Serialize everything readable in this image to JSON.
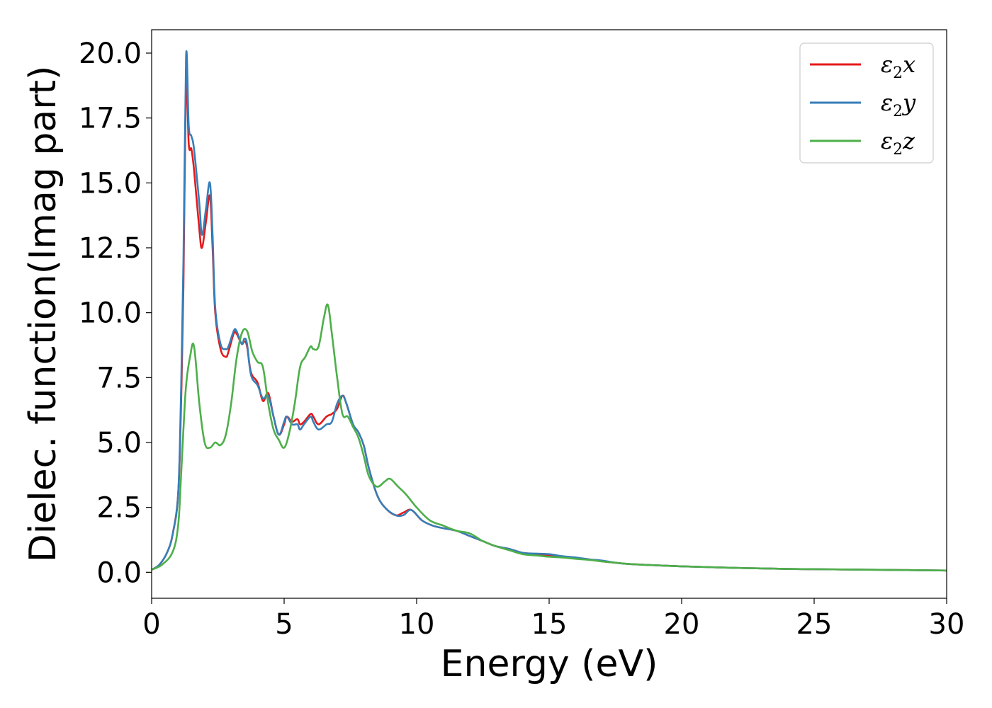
{
  "chart_data": {
    "type": "line",
    "xlabel": "Energy (eV)",
    "ylabel": "Dielec. function(Imag part)",
    "xlim": [
      0,
      30
    ],
    "ylim": [
      -1.0,
      20.9
    ],
    "xticks": [
      0,
      5,
      10,
      15,
      20,
      25,
      30
    ],
    "xtick_labels": [
      "0",
      "5",
      "10",
      "15",
      "20",
      "25",
      "30"
    ],
    "yticks": [
      0,
      2.5,
      5,
      7.5,
      10,
      12.5,
      15,
      17.5,
      20
    ],
    "ytick_labels": [
      "0.0",
      "2.5",
      "5.0",
      "7.5",
      "10.0",
      "12.5",
      "15.0",
      "17.5",
      "20.0"
    ],
    "grid": false,
    "legend": {
      "position": "top-right"
    },
    "series": [
      {
        "name": "ε2x",
        "legend_base": "ε",
        "legend_sub": "2",
        "legend_var": "x",
        "color": "#e41a1c",
        "x": [
          0,
          0.3,
          0.6,
          0.8,
          1.0,
          1.1,
          1.2,
          1.3,
          1.4,
          1.5,
          1.6,
          1.8,
          1.9,
          2.05,
          2.2,
          2.3,
          2.4,
          2.6,
          2.8,
          2.9,
          3.1,
          3.2,
          3.4,
          3.5,
          3.6,
          3.75,
          4.0,
          4.2,
          4.4,
          4.6,
          4.8,
          5.0,
          5.1,
          5.3,
          5.5,
          5.6,
          5.75,
          6.0,
          6.1,
          6.3,
          6.6,
          6.8,
          7.0,
          7.2,
          7.35,
          7.6,
          7.8,
          8.0,
          8.2,
          8.5,
          8.8,
          9.2,
          9.5,
          9.8,
          10.2,
          10.6,
          11.0,
          11.5,
          12.0,
          12.5,
          13.0,
          13.5,
          14.0,
          14.5,
          15.0,
          15.5,
          16.0,
          16.5,
          17.0,
          17.5,
          18.0,
          19.0,
          20.0,
          21.0,
          22.0,
          23.0,
          24.0,
          25.0,
          26.0,
          27.0,
          28.0,
          29.0,
          30.0
        ],
        "y": [
          0.1,
          0.3,
          0.8,
          1.5,
          3.0,
          6.0,
          11.0,
          19.1,
          16.5,
          16.3,
          15.5,
          13.2,
          12.5,
          13.5,
          14.5,
          12.5,
          10.0,
          8.6,
          8.3,
          8.5,
          9.2,
          9.2,
          8.8,
          8.9,
          8.7,
          7.7,
          7.3,
          6.6,
          6.9,
          6.0,
          5.3,
          5.7,
          6.0,
          5.8,
          5.9,
          5.7,
          5.8,
          6.1,
          6.0,
          5.7,
          6.0,
          6.1,
          6.3,
          6.8,
          6.5,
          5.7,
          5.4,
          4.9,
          4.0,
          3.0,
          2.5,
          2.2,
          2.3,
          2.4,
          2.0,
          1.8,
          1.7,
          1.6,
          1.4,
          1.2,
          1.0,
          0.9,
          0.75,
          0.7,
          0.65,
          0.6,
          0.55,
          0.5,
          0.42,
          0.37,
          0.32,
          0.27,
          0.23,
          0.2,
          0.17,
          0.15,
          0.13,
          0.12,
          0.11,
          0.1,
          0.09,
          0.08,
          0.07
        ]
      },
      {
        "name": "ε2y",
        "legend_base": "ε",
        "legend_sub": "2",
        "legend_var": "y",
        "color": "#377eb8",
        "x": [
          0,
          0.3,
          0.6,
          0.8,
          1.0,
          1.1,
          1.2,
          1.3,
          1.4,
          1.5,
          1.6,
          1.8,
          1.9,
          2.05,
          2.2,
          2.3,
          2.4,
          2.6,
          2.8,
          2.9,
          3.1,
          3.2,
          3.4,
          3.5,
          3.6,
          3.75,
          4.0,
          4.2,
          4.4,
          4.6,
          4.8,
          5.0,
          5.1,
          5.3,
          5.5,
          5.6,
          5.75,
          6.0,
          6.1,
          6.3,
          6.6,
          6.8,
          7.0,
          7.2,
          7.35,
          7.6,
          7.8,
          8.0,
          8.2,
          8.5,
          8.8,
          9.2,
          9.5,
          9.8,
          10.2,
          10.6,
          11.0,
          11.5,
          12.0,
          12.5,
          13.0,
          13.5,
          14.0,
          14.5,
          15.0,
          15.5,
          16.0,
          16.5,
          17.0,
          17.5,
          18.0,
          19.0,
          20.0,
          21.0,
          22.0,
          23.0,
          24.0,
          25.0,
          26.0,
          27.0,
          28.0,
          29.0,
          30.0
        ],
        "y": [
          0.1,
          0.3,
          0.8,
          1.5,
          3.0,
          6.5,
          12.0,
          19.9,
          17.2,
          16.8,
          16.3,
          14.2,
          13.0,
          14.0,
          15.0,
          13.0,
          10.2,
          8.8,
          8.6,
          8.7,
          9.3,
          9.3,
          8.8,
          9.0,
          8.8,
          7.6,
          7.2,
          6.7,
          6.8,
          6.0,
          5.3,
          5.8,
          6.0,
          5.7,
          5.7,
          5.5,
          5.7,
          6.0,
          5.8,
          5.5,
          5.7,
          5.8,
          6.5,
          6.8,
          6.5,
          5.7,
          5.4,
          4.9,
          4.0,
          3.0,
          2.5,
          2.2,
          2.2,
          2.4,
          2.0,
          1.8,
          1.7,
          1.6,
          1.4,
          1.2,
          1.0,
          0.9,
          0.75,
          0.72,
          0.7,
          0.62,
          0.57,
          0.5,
          0.45,
          0.37,
          0.32,
          0.27,
          0.23,
          0.2,
          0.17,
          0.15,
          0.13,
          0.12,
          0.11,
          0.1,
          0.09,
          0.08,
          0.07
        ]
      },
      {
        "name": "ε2z",
        "legend_base": "ε",
        "legend_sub": "2",
        "legend_var": "z",
        "color": "#4daf4a",
        "x": [
          0,
          0.4,
          0.8,
          1.0,
          1.1,
          1.2,
          1.3,
          1.45,
          1.6,
          1.8,
          2.0,
          2.2,
          2.4,
          2.6,
          2.8,
          3.0,
          3.2,
          3.4,
          3.6,
          3.8,
          4.0,
          4.2,
          4.4,
          4.6,
          4.8,
          5.0,
          5.2,
          5.4,
          5.6,
          5.8,
          6.0,
          6.1,
          6.3,
          6.5,
          6.65,
          6.8,
          7.0,
          7.2,
          7.4,
          7.6,
          7.8,
          8.0,
          8.2,
          8.5,
          8.8,
          9.0,
          9.3,
          9.6,
          10.0,
          10.5,
          11.0,
          11.5,
          12.0,
          12.5,
          13.0,
          13.5,
          14.0,
          14.5,
          15.0,
          15.5,
          16.0,
          16.5,
          17.0,
          17.5,
          18.0,
          19.0,
          20.0,
          21.0,
          22.0,
          23.0,
          24.0,
          25.0,
          26.0,
          27.0,
          28.0,
          29.0,
          30.0
        ],
        "y": [
          0.1,
          0.3,
          0.8,
          1.8,
          3.5,
          5.5,
          7.2,
          8.3,
          8.7,
          6.5,
          5.0,
          4.8,
          5.0,
          4.9,
          5.3,
          6.5,
          8.2,
          9.2,
          9.3,
          8.5,
          8.1,
          7.9,
          6.5,
          5.5,
          5.1,
          4.8,
          5.4,
          6.5,
          7.9,
          8.3,
          8.7,
          8.6,
          8.7,
          9.8,
          10.3,
          9.2,
          7.5,
          6.1,
          6.0,
          5.6,
          5.2,
          4.5,
          3.7,
          3.3,
          3.5,
          3.6,
          3.3,
          3.0,
          2.5,
          2.0,
          1.8,
          1.6,
          1.5,
          1.2,
          1.0,
          0.85,
          0.7,
          0.65,
          0.6,
          0.57,
          0.52,
          0.48,
          0.42,
          0.37,
          0.32,
          0.27,
          0.23,
          0.2,
          0.17,
          0.15,
          0.13,
          0.12,
          0.11,
          0.1,
          0.09,
          0.08,
          0.07
        ]
      }
    ]
  }
}
